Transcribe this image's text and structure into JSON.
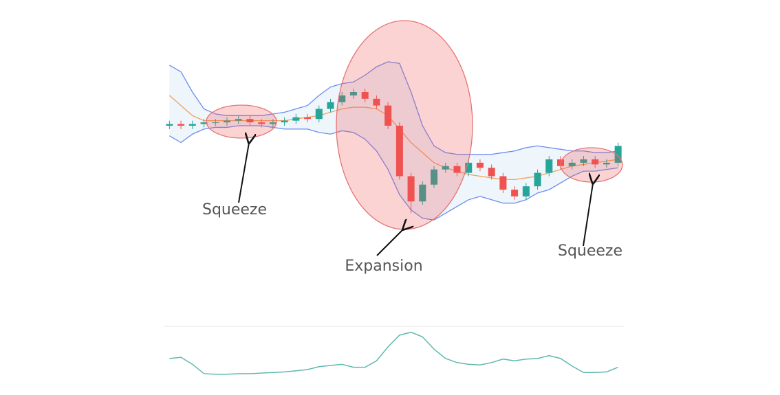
{
  "chart_data": [
    {
      "type": "candlestick",
      "open": [
        60,
        61,
        60,
        61,
        62,
        62,
        63,
        64,
        62,
        61,
        62,
        63,
        65,
        64,
        70,
        74,
        78,
        80,
        76,
        72,
        60,
        30,
        15,
        25,
        34,
        36,
        32,
        38,
        35,
        30,
        22,
        18,
        24,
        32,
        40,
        36,
        38,
        40,
        37,
        38
      ],
      "high": [
        63,
        63,
        63,
        64,
        64,
        65,
        66,
        66,
        64,
        64,
        65,
        67,
        67,
        72,
        76,
        80,
        82,
        82,
        78,
        74,
        62,
        32,
        27,
        36,
        38,
        38,
        40,
        40,
        37,
        32,
        24,
        26,
        34,
        42,
        42,
        40,
        42,
        42,
        40,
        50
      ],
      "low": [
        58,
        58,
        58,
        59,
        60,
        60,
        61,
        60,
        59,
        59,
        60,
        61,
        62,
        62,
        68,
        72,
        76,
        74,
        70,
        58,
        28,
        8,
        13,
        23,
        32,
        30,
        30,
        33,
        28,
        20,
        16,
        16,
        22,
        30,
        34,
        34,
        36,
        35,
        35,
        36
      ],
      "close": [
        61,
        60,
        61,
        62,
        62,
        63,
        64,
        62,
        61,
        62,
        63,
        65,
        64,
        70,
        74,
        78,
        80,
        76,
        72,
        60,
        30,
        15,
        25,
        34,
        36,
        32,
        38,
        35,
        30,
        22,
        18,
        24,
        32,
        40,
        36,
        38,
        40,
        37,
        38,
        48
      ],
      "upper": [
        96,
        92,
        80,
        70,
        67,
        66,
        66,
        66,
        66,
        67,
        68,
        70,
        72,
        78,
        83,
        85,
        86,
        90,
        95,
        98,
        97,
        80,
        60,
        48,
        44,
        43,
        43,
        43,
        43,
        44,
        45,
        47,
        48,
        47,
        46,
        45,
        45,
        44,
        44,
        45
      ],
      "middle": [
        78,
        72,
        66,
        63,
        63,
        63,
        63,
        63,
        63,
        63,
        63,
        64,
        65,
        66,
        68,
        70,
        71,
        71,
        70,
        66,
        58,
        50,
        44,
        38,
        35,
        33,
        31,
        30,
        29,
        28,
        28,
        29,
        30,
        32,
        34,
        36,
        37,
        38,
        39,
        40
      ],
      "lower": [
        54,
        50,
        55,
        58,
        59,
        59,
        60,
        60,
        60,
        59,
        58,
        58,
        58,
        56,
        55,
        57,
        56,
        52,
        45,
        34,
        19,
        10,
        5,
        4,
        8,
        12,
        16,
        18,
        16,
        14,
        14,
        16,
        20,
        22,
        26,
        30,
        33,
        33,
        34,
        35
      ],
      "up_color": "#26a69a",
      "down_color": "#ef5350",
      "band_color": "#6b8cef",
      "middle_color": "#f5a05a",
      "band_fill": "#eef5fb",
      "ylim": [
        0,
        100
      ],
      "annotations": [
        {
          "text": "Squeeze"
        },
        {
          "text": "Expansion"
        },
        {
          "text": "Squeeze"
        }
      ]
    },
    {
      "type": "line",
      "values": [
        39,
        41,
        29,
        13,
        12,
        12,
        13,
        13,
        14,
        15,
        16,
        18,
        20,
        25,
        27,
        29,
        24,
        24,
        35,
        59,
        79,
        84,
        76,
        55,
        39,
        32,
        29,
        28,
        32,
        38,
        35,
        38,
        39,
        44,
        39,
        26,
        15,
        15,
        16,
        24
      ],
      "color": "#5fb8b0",
      "ylim": [
        0,
        100
      ]
    }
  ]
}
